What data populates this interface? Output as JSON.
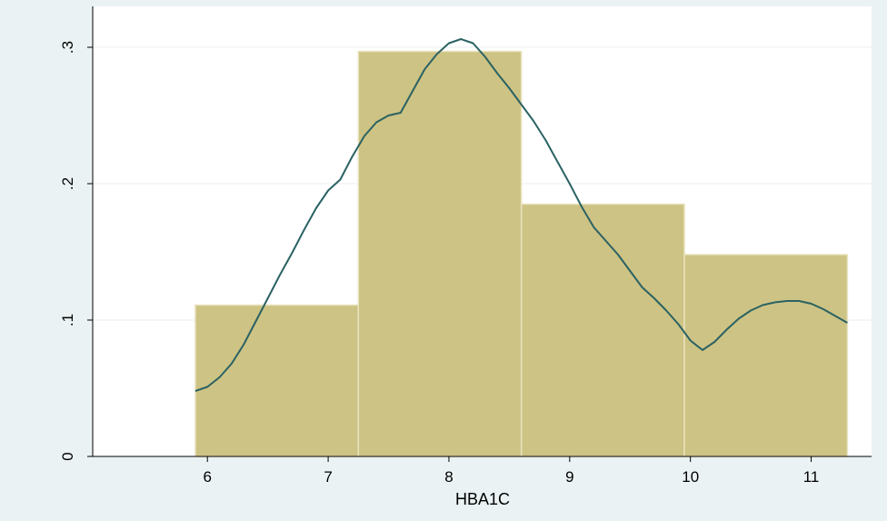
{
  "chart_data": {
    "type": "bar",
    "xlabel": "HBA1C",
    "ylabel": "",
    "xlim": [
      5.05,
      11.5
    ],
    "ylim": [
      0,
      0.33
    ],
    "x_ticks": [
      6,
      7,
      8,
      9,
      10,
      11
    ],
    "x_tick_labels": [
      "6",
      "7",
      "8",
      "9",
      "10",
      "11"
    ],
    "y_ticks": [
      0,
      0.1,
      0.2,
      0.3
    ],
    "y_tick_labels": [
      "0",
      ".1",
      ".2",
      ".3"
    ],
    "grid": true,
    "bins": [
      {
        "x0": 5.9,
        "x1": 7.25,
        "value": 0.111
      },
      {
        "x0": 7.25,
        "x1": 8.6,
        "value": 0.297
      },
      {
        "x0": 8.6,
        "x1": 9.95,
        "value": 0.185
      },
      {
        "x0": 9.95,
        "x1": 11.3,
        "value": 0.148
      }
    ],
    "density_curve": {
      "x": [
        5.9,
        6.0,
        6.1,
        6.2,
        6.3,
        6.4,
        6.5,
        6.6,
        6.7,
        6.8,
        6.9,
        7.0,
        7.1,
        7.2,
        7.3,
        7.4,
        7.5,
        7.6,
        7.7,
        7.8,
        7.9,
        8.0,
        8.1,
        8.2,
        8.3,
        8.4,
        8.5,
        8.6,
        8.7,
        8.8,
        8.9,
        9.0,
        9.1,
        9.2,
        9.3,
        9.4,
        9.5,
        9.6,
        9.7,
        9.8,
        9.9,
        10.0,
        10.1,
        10.2,
        10.3,
        10.4,
        10.5,
        10.6,
        10.7,
        10.8,
        10.9,
        11.0,
        11.1,
        11.2,
        11.3
      ],
      "y": [
        0.048,
        0.051,
        0.058,
        0.068,
        0.082,
        0.099,
        0.116,
        0.133,
        0.149,
        0.166,
        0.182,
        0.195,
        0.203,
        0.22,
        0.235,
        0.245,
        0.25,
        0.252,
        0.268,
        0.284,
        0.295,
        0.303,
        0.306,
        0.303,
        0.293,
        0.281,
        0.27,
        0.258,
        0.246,
        0.232,
        0.216,
        0.2,
        0.183,
        0.168,
        0.158,
        0.148,
        0.136,
        0.124,
        0.116,
        0.107,
        0.097,
        0.085,
        0.078,
        0.084,
        0.093,
        0.101,
        0.107,
        0.111,
        0.113,
        0.114,
        0.114,
        0.112,
        0.108,
        0.103,
        0.098
      ]
    },
    "colors": {
      "bar_fill": "#cdc384",
      "bar_stroke": "#eae3c0",
      "curve": "#2b6263",
      "plot_bg": "#ffffff",
      "page_bg": "#eaf2f3",
      "grid": "#e8eef0"
    }
  }
}
